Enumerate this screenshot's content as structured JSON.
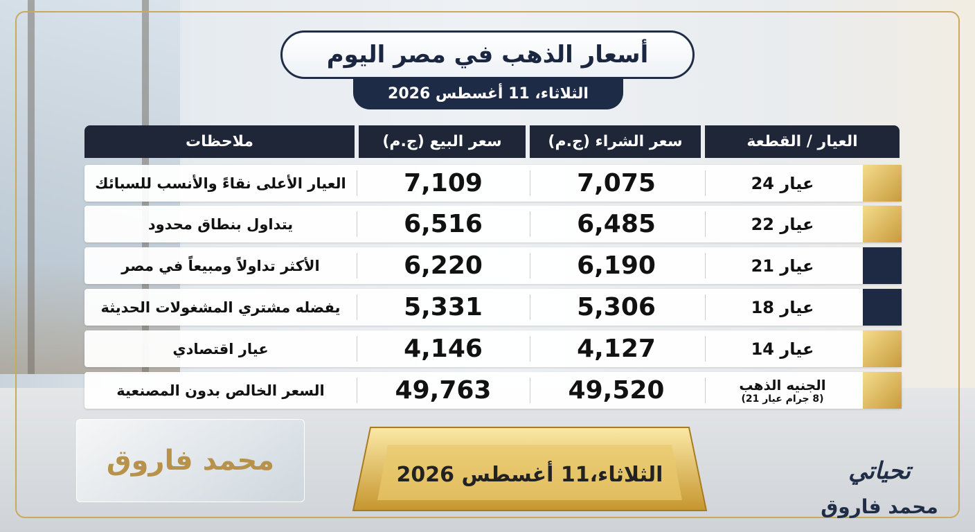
{
  "header": {
    "title": "أسعار الذهب في مصر اليوم",
    "date": "الثلاثاء، 11 أغسطس 2026"
  },
  "table": {
    "columns": [
      "العيار / القطعة",
      "سعر الشراء (ج.م)",
      "سعر البيع (ج.م)",
      "ملاحظات"
    ],
    "rows": [
      {
        "name": "عيار 24",
        "buy": "7,075",
        "sell": "7,109",
        "note": "العيار الأعلى نقاءً والأنسب للسبائك"
      },
      {
        "name": "عيار 22",
        "buy": "6,485",
        "sell": "6,516",
        "note": "يتداول بنطاق محدود"
      },
      {
        "name": "عيار 21",
        "buy": "6,190",
        "sell": "6,220",
        "note": "الأكثر تداولاً ومبيعاً في مصر"
      },
      {
        "name": "عيار 18",
        "buy": "5,306",
        "sell": "5,331",
        "note": "يفضله مشتري المشغولات الحديثة"
      },
      {
        "name": "عيار 14",
        "buy": "4,127",
        "sell": "4,146",
        "note": "عيار اقتصادي"
      },
      {
        "name": "الجنيه الذهب",
        "subname": "(8 جرام عيار 21)",
        "buy": "49,520",
        "sell": "49,763",
        "note": "السعر الخالص بدون المصنعية"
      }
    ]
  },
  "footer": {
    "plaque": "محمد فاروق",
    "bar_date": "الثلاثاء،11 أغسطس 2026",
    "greeting": "تحياتي",
    "signature": "محمد فاروق"
  }
}
